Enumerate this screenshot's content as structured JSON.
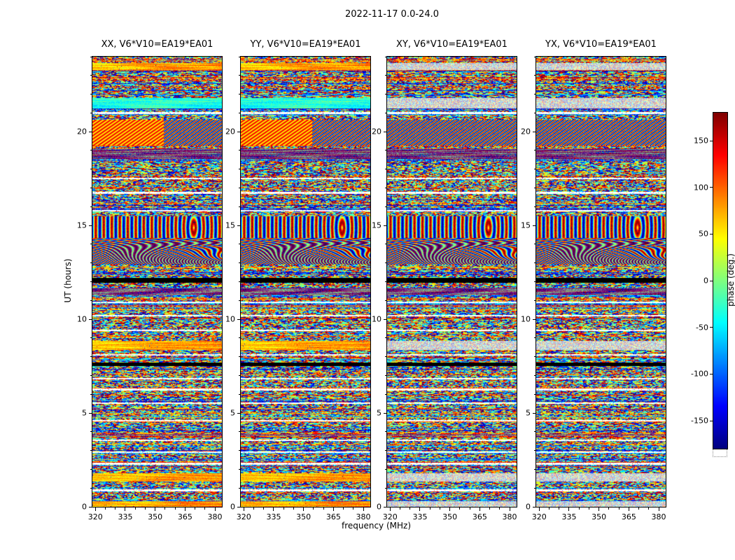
{
  "chart_data": {
    "type": "heatmap",
    "title": "2022-11-17 0.0-24.0",
    "panels": [
      {
        "pol": "XX",
        "label": "XX, V6*V10=EA19*EA01"
      },
      {
        "pol": "YY",
        "label": "YY, V6*V10=EA19*EA01"
      },
      {
        "pol": "XY",
        "label": "XY, V6*V10=EA19*EA01"
      },
      {
        "pol": "YX",
        "label": "YX, V6*V10=EA19*EA01"
      }
    ],
    "x": {
      "label": "frequency (MHz)",
      "range": [
        318.5,
        383.5
      ],
      "ticks": [
        320,
        335,
        350,
        365,
        380
      ],
      "minor_step": 5
    },
    "y": {
      "label": "UT (hours)",
      "range": [
        0,
        24
      ],
      "ticks": [
        0,
        5,
        10,
        15,
        20
      ],
      "minor_step": 1
    },
    "colorbar": {
      "label": "phase (deg.)",
      "range": [
        -180,
        180
      ],
      "ticks": [
        -150,
        -100,
        -50,
        0,
        50,
        100,
        150
      ],
      "colormap": "jet"
    },
    "value_description": "Interferometric visibility phase (degrees) versus frequency and time for baseline V6*V10=EA19*EA01; dense pseudo-random phase speckle organized in horizontal time bands, with data-gap (black) rows, dropout (white) rows, smooth warm-phase bands and moire/fringe-patterned intervals.",
    "time_bands": [
      {
        "from": 0.0,
        "to": 0.3,
        "type": "smooth_warm",
        "applies": "XXYY"
      },
      {
        "from": 0.82,
        "to": 0.92,
        "type": "dropout",
        "applies": "all"
      },
      {
        "from": 1.35,
        "to": 1.8,
        "type": "smooth_warm",
        "applies": "XXYY"
      },
      {
        "from": 2.25,
        "to": 2.34,
        "type": "dropout",
        "applies": "all"
      },
      {
        "from": 2.86,
        "to": 2.95,
        "type": "dropout",
        "applies": "all"
      },
      {
        "from": 3.5,
        "to": 3.59,
        "type": "dropout",
        "applies": "all"
      },
      {
        "from": 4.55,
        "to": 4.64,
        "type": "dropout",
        "applies": "all"
      },
      {
        "from": 5.48,
        "to": 5.57,
        "type": "dropout",
        "applies": "all"
      },
      {
        "from": 6.2,
        "to": 6.29,
        "type": "dropout",
        "applies": "all"
      },
      {
        "from": 6.78,
        "to": 6.87,
        "type": "dropout",
        "applies": "all"
      },
      {
        "from": 7.5,
        "to": 7.7,
        "type": "gap",
        "applies": "all"
      },
      {
        "from": 8.05,
        "to": 8.14,
        "type": "dropout",
        "applies": "all"
      },
      {
        "from": 8.35,
        "to": 8.85,
        "type": "smooth_warm",
        "applies": "XXYY"
      },
      {
        "from": 9.35,
        "to": 9.44,
        "type": "dropout",
        "applies": "all"
      },
      {
        "from": 10.15,
        "to": 10.24,
        "type": "dropout",
        "applies": "all"
      },
      {
        "from": 10.85,
        "to": 10.94,
        "type": "dropout",
        "applies": "all"
      },
      {
        "from": 11.3,
        "to": 11.7,
        "type": "hstripes",
        "applies": "all"
      },
      {
        "from": 11.95,
        "to": 12.22,
        "type": "gap",
        "applies": "all"
      },
      {
        "from": 12.9,
        "to": 15.5,
        "type": "moire",
        "applies": "all"
      },
      {
        "from": 15.75,
        "to": 15.84,
        "type": "dropout",
        "applies": "all"
      },
      {
        "from": 16.7,
        "to": 16.79,
        "type": "dropout",
        "applies": "all"
      },
      {
        "from": 17.45,
        "to": 17.54,
        "type": "dropout",
        "applies": "all"
      },
      {
        "from": 18.5,
        "to": 19.1,
        "type": "hstripes",
        "applies": "all"
      },
      {
        "from": 19.25,
        "to": 20.65,
        "type": "diag",
        "applies": "all"
      },
      {
        "from": 20.95,
        "to": 21.04,
        "type": "dropout",
        "applies": "all"
      },
      {
        "from": 21.25,
        "to": 21.8,
        "type": "smooth_cool",
        "applies": "XXYY"
      },
      {
        "from": 23.3,
        "to": 23.65,
        "type": "smooth_warm",
        "applies": "XXYY"
      }
    ]
  }
}
